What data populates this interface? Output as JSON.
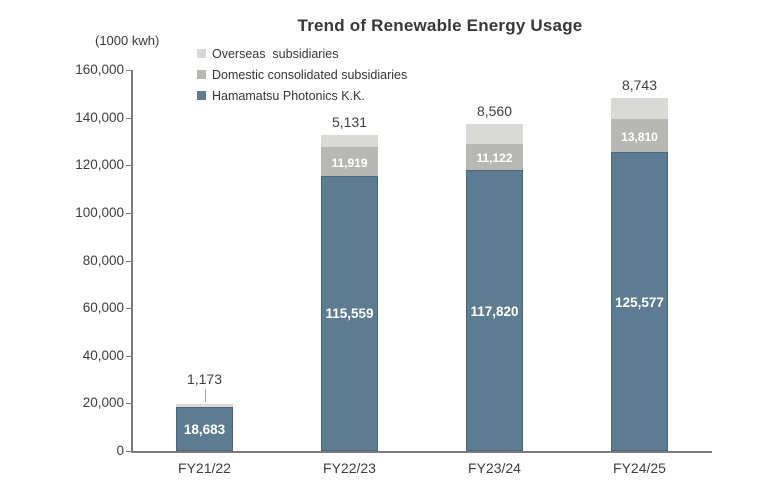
{
  "chart_data": {
    "type": "bar",
    "subtype": "stacked-vertical",
    "title": "Trend of Renewable Energy Usage",
    "unit_label": "(1000 kwh)",
    "xlabel": "",
    "ylabel": "1000 kwh",
    "categories": [
      "FY21/22",
      "FY22/23",
      "FY23/24",
      "FY24/25"
    ],
    "series": [
      {
        "key": "overseas",
        "name": "Overseas  subsidiaries",
        "color": "#d9d9d8",
        "values": [
          1173,
          5131,
          8560,
          8743
        ],
        "labels": [
          "1,173",
          "5,131",
          "8,560",
          "8,743"
        ],
        "label_style": "above"
      },
      {
        "key": "domestic",
        "name": "Domestic consolidated subsidiaries",
        "color": "#b7b7b4",
        "values": [
          0,
          11919,
          11122,
          13810
        ],
        "labels": [
          "",
          "11,919",
          "11,122",
          "13,810"
        ],
        "label_style": "inside"
      },
      {
        "key": "hamamatsu",
        "name": "Hamamatsu Photonics K.K.",
        "color": "#5d7c92",
        "values": [
          18683,
          115559,
          117820,
          125577
        ],
        "labels": [
          "18,683",
          "115,559",
          "117,820",
          "125,577"
        ],
        "label_style": "inside"
      }
    ],
    "totals": [
      19856,
      132609,
      137502,
      148130
    ],
    "y_axis": {
      "min": 0,
      "max": 160000,
      "step": 20000,
      "tick_labels": [
        "0",
        "20,000",
        "40,000",
        "60,000",
        "80,000",
        "100,000",
        "120,000",
        "140,000",
        "160,000"
      ]
    },
    "legend_position": "top-left",
    "grid": false,
    "callout": {
      "category_index": 0,
      "series_key": "overseas"
    },
    "colors": {
      "axis": "#7a7a7a",
      "title_text": "#383838",
      "label_text": "#3f3f3f",
      "bar_value_text": "#ffffff"
    }
  }
}
